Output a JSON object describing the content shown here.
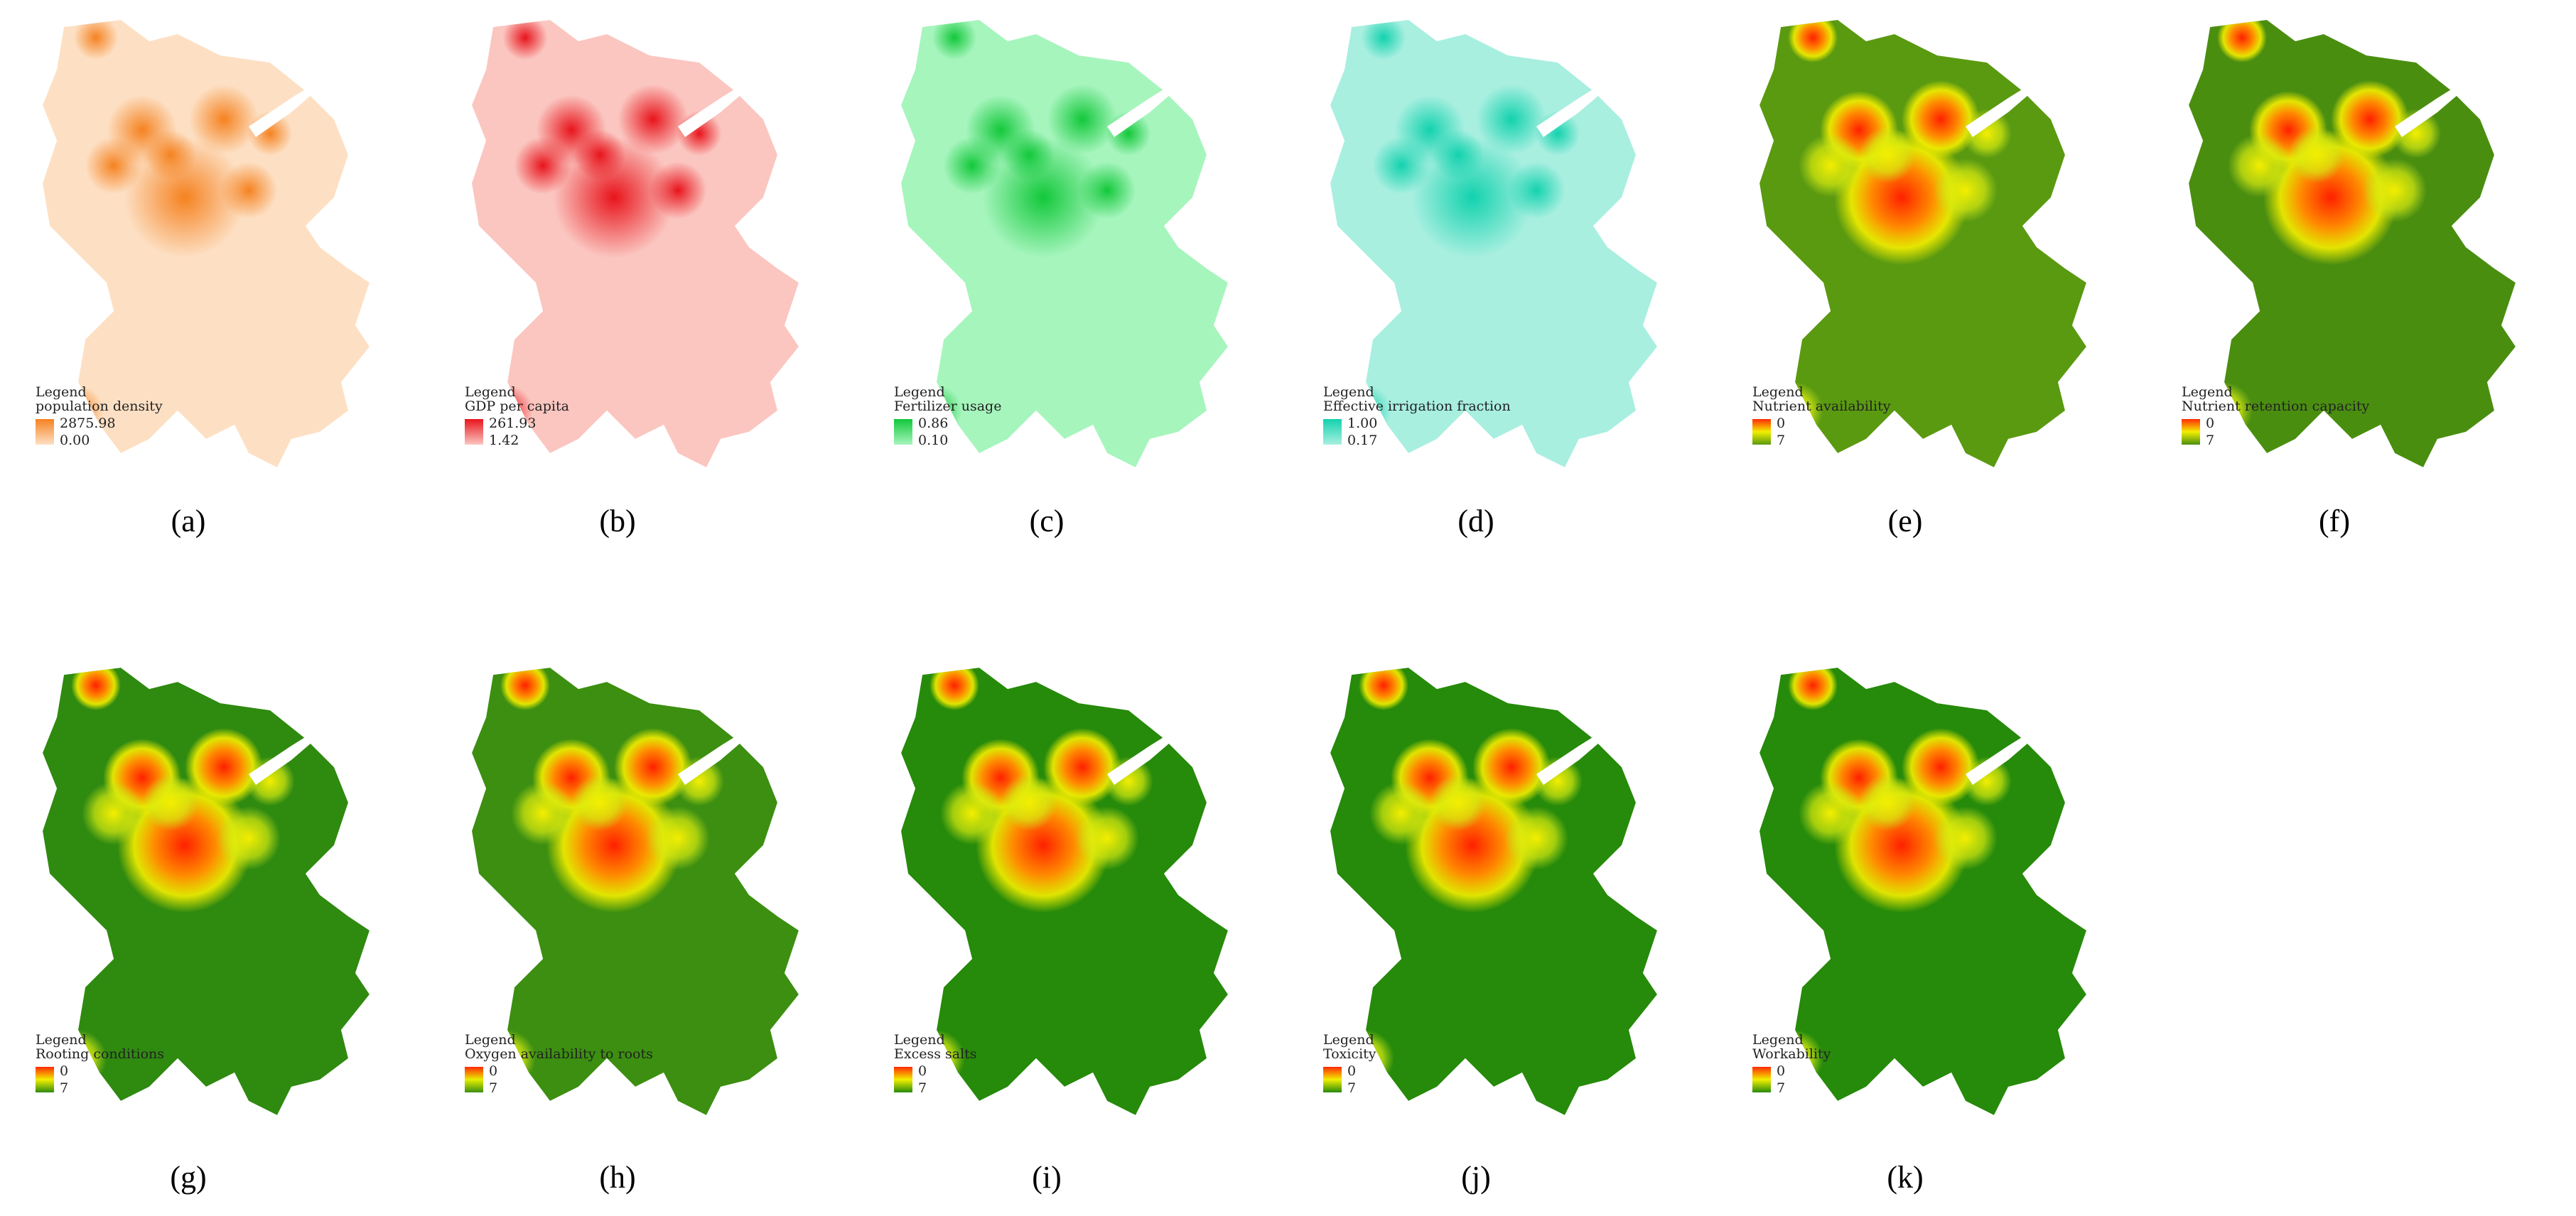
{
  "panels": [
    {
      "label": "(a)",
      "legend_title": "Legend",
      "layer": "population density",
      "legend_top": "2875.98",
      "legend_bottom": "0.00",
      "colors": [
        "#f58220",
        "#fde0c4"
      ]
    },
    {
      "label": "(b)",
      "legend_title": "Legend",
      "layer": "GDP per capita",
      "legend_top": "261.93",
      "legend_bottom": "1.42",
      "colors": [
        "#e8141c",
        "#fbc6c0"
      ]
    },
    {
      "label": "(c)",
      "legend_title": "Legend",
      "layer": "Fertilizer usage",
      "legend_top": "0.86",
      "legend_bottom": "0.10",
      "colors": [
        "#12c83a",
        "#a6f5bd"
      ]
    },
    {
      "label": "(d)",
      "legend_title": "Legend",
      "layer": "Effective irrigation fraction",
      "legend_top": "1.00",
      "legend_bottom": "0.17",
      "colors": [
        "#12d2ae",
        "#a8efe0"
      ]
    },
    {
      "label": "(e)",
      "legend_title": "Legend",
      "layer": "Nutrient availability",
      "legend_top": "0",
      "legend_bottom": "7",
      "colors": [
        "#ff2a00",
        "#f2f000",
        "#5a9a10"
      ]
    },
    {
      "label": "(f)",
      "legend_title": "Legend",
      "layer": "Nutrient retention capacity",
      "legend_top": "0",
      "legend_bottom": "7",
      "colors": [
        "#ff2a00",
        "#f2f000",
        "#4a8e10"
      ]
    },
    {
      "label": "(g)",
      "legend_title": "Legend",
      "layer": "Rooting conditions",
      "legend_top": "0",
      "legend_bottom": "7",
      "colors": [
        "#ff2a00",
        "#f2f000",
        "#2f8a10"
      ]
    },
    {
      "label": "(h)",
      "legend_title": "Legend",
      "layer": "Oxygen availability to roots",
      "legend_top": "0",
      "legend_bottom": "7",
      "colors": [
        "#ff2a00",
        "#e6f000",
        "#3c8f10"
      ]
    },
    {
      "label": "(i)",
      "legend_title": "Legend",
      "layer": "Excess salts",
      "legend_top": "0",
      "legend_bottom": "7",
      "colors": [
        "#ff2a00",
        "#f2f000",
        "#268a0a"
      ]
    },
    {
      "label": "(j)",
      "legend_title": "Legend",
      "layer": "Toxicity",
      "legend_top": "0",
      "legend_bottom": "7",
      "colors": [
        "#ff2a00",
        "#f2f000",
        "#268a0a"
      ]
    },
    {
      "label": "(k)",
      "legend_title": "Legend",
      "layer": "Workability",
      "legend_top": "0",
      "legend_bottom": "7",
      "colors": [
        "#ff2a00",
        "#f2f000",
        "#268a0a"
      ]
    }
  ]
}
